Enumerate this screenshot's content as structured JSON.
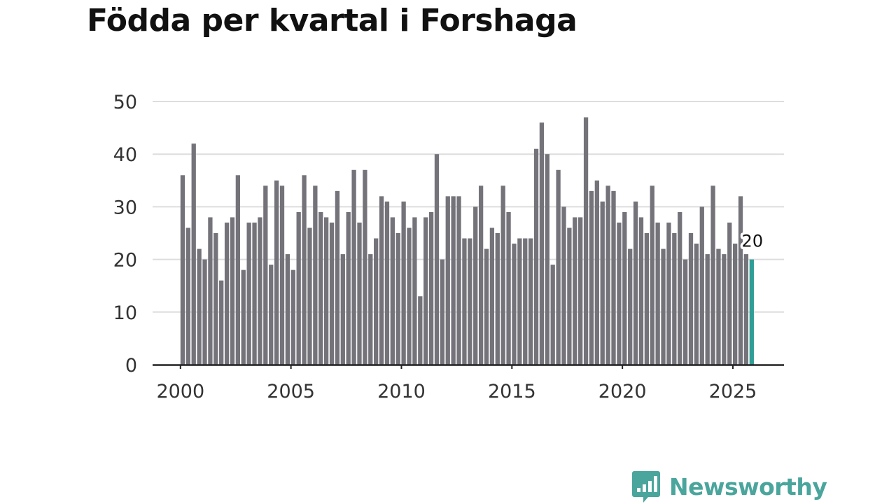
{
  "chart_data": {
    "type": "bar",
    "title": "Födda per kvartal i Forshaga",
    "xlabel": "",
    "ylabel": "",
    "ylim": [
      0,
      50
    ],
    "yticks": [
      0,
      10,
      20,
      30,
      40,
      50
    ],
    "xticks": [
      "2000",
      "2005",
      "2010",
      "2015",
      "2020",
      "2025"
    ],
    "grid": true,
    "start": "2000 Q1",
    "end": "2025 Q4",
    "categories": [
      "2000 Q1",
      "2000 Q2",
      "2000 Q3",
      "2000 Q4",
      "2001 Q1",
      "2001 Q2",
      "2001 Q3",
      "2001 Q4",
      "2002 Q1",
      "2002 Q2",
      "2002 Q3",
      "2002 Q4",
      "2003 Q1",
      "2003 Q2",
      "2003 Q3",
      "2003 Q4",
      "2004 Q1",
      "2004 Q2",
      "2004 Q3",
      "2004 Q4",
      "2005 Q1",
      "2005 Q2",
      "2005 Q3",
      "2005 Q4",
      "2006 Q1",
      "2006 Q2",
      "2006 Q3",
      "2006 Q4",
      "2007 Q1",
      "2007 Q2",
      "2007 Q3",
      "2007 Q4",
      "2008 Q1",
      "2008 Q2",
      "2008 Q3",
      "2008 Q4",
      "2009 Q1",
      "2009 Q2",
      "2009 Q3",
      "2009 Q4",
      "2010 Q1",
      "2010 Q2",
      "2010 Q3",
      "2010 Q4",
      "2011 Q1",
      "2011 Q2",
      "2011 Q3",
      "2011 Q4",
      "2012 Q1",
      "2012 Q2",
      "2012 Q3",
      "2012 Q4",
      "2013 Q1",
      "2013 Q2",
      "2013 Q3",
      "2013 Q4",
      "2014 Q1",
      "2014 Q2",
      "2014 Q3",
      "2014 Q4",
      "2015 Q1",
      "2015 Q2",
      "2015 Q3",
      "2015 Q4",
      "2016 Q1",
      "2016 Q2",
      "2016 Q3",
      "2016 Q4",
      "2017 Q1",
      "2017 Q2",
      "2017 Q3",
      "2017 Q4",
      "2018 Q1",
      "2018 Q2",
      "2018 Q3",
      "2018 Q4",
      "2019 Q1",
      "2019 Q2",
      "2019 Q3",
      "2019 Q4",
      "2020 Q1",
      "2020 Q2",
      "2020 Q3",
      "2020 Q4",
      "2021 Q1",
      "2021 Q2",
      "2021 Q3",
      "2021 Q4",
      "2022 Q1",
      "2022 Q2",
      "2022 Q3",
      "2022 Q4",
      "2023 Q1",
      "2023 Q2",
      "2023 Q3",
      "2023 Q4",
      "2024 Q1",
      "2024 Q2",
      "2024 Q3",
      "2024 Q4",
      "2025 Q1",
      "2025 Q2",
      "2025 Q3",
      "2025 Q4"
    ],
    "values": [
      36,
      26,
      42,
      22,
      20,
      28,
      25,
      16,
      27,
      28,
      36,
      18,
      27,
      27,
      28,
      34,
      19,
      35,
      34,
      21,
      18,
      29,
      36,
      26,
      34,
      29,
      28,
      27,
      33,
      21,
      29,
      37,
      27,
      37,
      21,
      24,
      32,
      31,
      28,
      25,
      31,
      26,
      28,
      13,
      28,
      29,
      40,
      20,
      32,
      32,
      32,
      24,
      24,
      30,
      34,
      22,
      26,
      25,
      34,
      29,
      23,
      24,
      24,
      24,
      41,
      46,
      40,
      19,
      37,
      30,
      26,
      28,
      28,
      47,
      33,
      35,
      31,
      34,
      33,
      27,
      29,
      22,
      31,
      28,
      25,
      34,
      27,
      22,
      27,
      25,
      29,
      20,
      25,
      23,
      30,
      21,
      34,
      22,
      21,
      27,
      23,
      32,
      21,
      20
    ],
    "highlight_index": 103,
    "highlight_label": "20",
    "colors": {
      "bar": "#75737a",
      "highlight": "#2f9e96",
      "grid": "#dddddd",
      "axis": "#222222"
    }
  },
  "brand": {
    "name": "Newsworthy",
    "color": "#4aa59c"
  }
}
